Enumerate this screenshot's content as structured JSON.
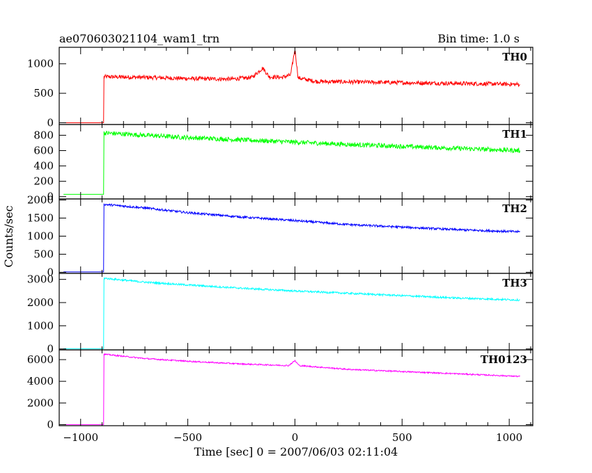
{
  "chart_data": {
    "type": "line",
    "title": "ae070603021104_wam1_trn",
    "subtitle": "Bin time: 1.0 s",
    "xlabel": "Time [sec] 0 = 2007/06/03 02:11:04",
    "ylabel": "Counts/sec",
    "xlim": [
      -1100,
      1110
    ],
    "xticks": [
      -1000,
      -500,
      0,
      500,
      1000
    ],
    "xtick_labels": [
      "−1000",
      "−500",
      "0",
      "500",
      "1000"
    ],
    "grid": false,
    "panels": [
      {
        "name": "TH0",
        "color": "#ff0000",
        "ylim": [
          -30,
          1280
        ],
        "yticks": [
          0,
          500,
          1000
        ],
        "ytick_labels": [
          "0",
          "500",
          "1000"
        ],
        "points": [
          [
            -1080,
            0
          ],
          [
            -895,
            0
          ],
          [
            -893,
            0
          ],
          [
            -891,
            780
          ],
          [
            -800,
            775
          ],
          [
            -700,
            770
          ],
          [
            -600,
            760
          ],
          [
            -500,
            750
          ],
          [
            -400,
            745
          ],
          [
            -300,
            740
          ],
          [
            -200,
            770
          ],
          [
            -150,
            930
          ],
          [
            -120,
            780
          ],
          [
            -60,
            770
          ],
          [
            -20,
            810
          ],
          [
            0,
            1250
          ],
          [
            15,
            760
          ],
          [
            100,
            700
          ],
          [
            300,
            690
          ],
          [
            500,
            680
          ],
          [
            700,
            670
          ],
          [
            900,
            660
          ],
          [
            1050,
            650
          ]
        ],
        "noise": 35
      },
      {
        "name": "TH1",
        "color": "#00ff00",
        "ylim": [
          -30,
          940
        ],
        "yticks": [
          0,
          200,
          400,
          600,
          800
        ],
        "ytick_labels": [
          "0",
          "200",
          "400",
          "600",
          "800"
        ],
        "points": [
          [
            -1080,
            30
          ],
          [
            -895,
            30
          ],
          [
            -893,
            30
          ],
          [
            -891,
            830
          ],
          [
            -700,
            800
          ],
          [
            -500,
            770
          ],
          [
            -250,
            740
          ],
          [
            0,
            710
          ],
          [
            250,
            680
          ],
          [
            500,
            655
          ],
          [
            750,
            630
          ],
          [
            1050,
            600
          ]
        ],
        "noise": 30
      },
      {
        "name": "TH2",
        "color": "#0000ff",
        "ylim": [
          -30,
          2030
        ],
        "yticks": [
          0,
          500,
          1000,
          1500,
          2000
        ],
        "ytick_labels": [
          "0",
          "500",
          "1000",
          "1500",
          "2000"
        ],
        "points": [
          [
            -1080,
            10
          ],
          [
            -895,
            10
          ],
          [
            -893,
            10
          ],
          [
            -891,
            1880
          ],
          [
            -700,
            1780
          ],
          [
            -500,
            1650
          ],
          [
            -250,
            1530
          ],
          [
            0,
            1430
          ],
          [
            250,
            1320
          ],
          [
            500,
            1250
          ],
          [
            750,
            1180
          ],
          [
            1050,
            1120
          ]
        ],
        "noise": 30
      },
      {
        "name": "TH3",
        "color": "#00ffff",
        "ylim": [
          -40,
          3260
        ],
        "yticks": [
          0,
          1000,
          2000,
          3000
        ],
        "ytick_labels": [
          "0",
          "1000",
          "2000",
          "3000"
        ],
        "points": [
          [
            -1080,
            10
          ],
          [
            -895,
            10
          ],
          [
            -893,
            10
          ],
          [
            -891,
            3050
          ],
          [
            -700,
            2880
          ],
          [
            -500,
            2760
          ],
          [
            -250,
            2620
          ],
          [
            0,
            2500
          ],
          [
            250,
            2400
          ],
          [
            500,
            2300
          ],
          [
            750,
            2200
          ],
          [
            1050,
            2110
          ]
        ],
        "noise": 40
      },
      {
        "name": "TH0123",
        "color": "#ff00ff",
        "ylim": [
          -100,
          6900
        ],
        "yticks": [
          0,
          2000,
          4000,
          6000
        ],
        "ytick_labels": [
          "0",
          "2000",
          "4000",
          "6000"
        ],
        "points": [
          [
            -1080,
            0
          ],
          [
            -895,
            0
          ],
          [
            -893,
            0
          ],
          [
            -891,
            6500
          ],
          [
            -700,
            6100
          ],
          [
            -500,
            5850
          ],
          [
            -250,
            5600
          ],
          [
            -30,
            5450
          ],
          [
            0,
            5900
          ],
          [
            20,
            5450
          ],
          [
            250,
            5100
          ],
          [
            500,
            4900
          ],
          [
            750,
            4700
          ],
          [
            1050,
            4450
          ]
        ],
        "noise": 60
      }
    ]
  }
}
